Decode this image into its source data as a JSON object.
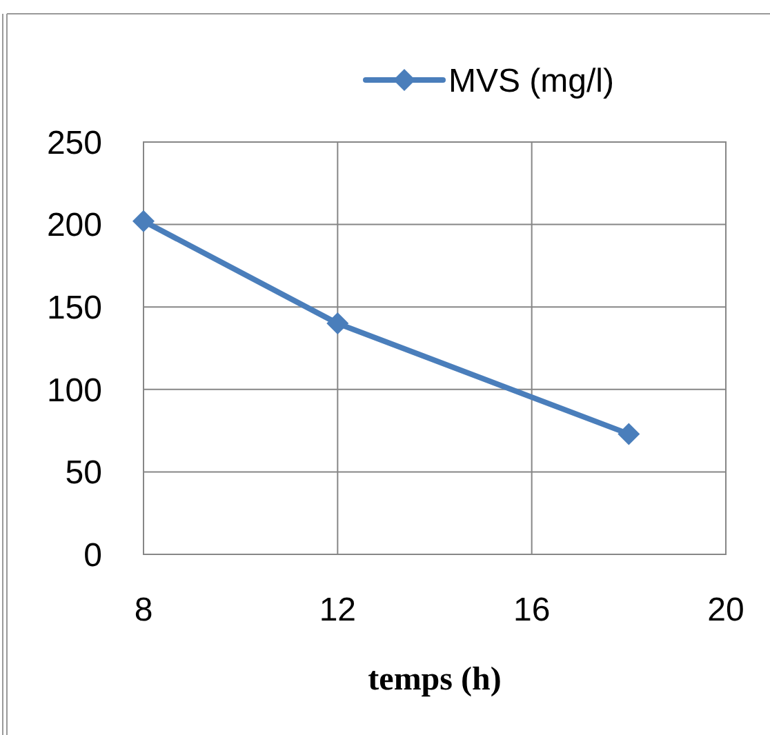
{
  "chart_data": {
    "type": "line",
    "xlabel": "temps (h)",
    "x": [
      8,
      12,
      18
    ],
    "series": [
      {
        "name": "MVS (mg/l)",
        "color": "#4a7ebb",
        "values": [
          202,
          140,
          73
        ]
      }
    ],
    "xlim": [
      8,
      20
    ],
    "xticks": [
      8,
      12,
      16,
      20
    ],
    "ylim": [
      0,
      250
    ],
    "yticks": [
      0,
      50,
      100,
      150,
      200,
      250
    ],
    "grid": true,
    "legend": "top right",
    "marker": "diamond",
    "line_style": "solid"
  }
}
